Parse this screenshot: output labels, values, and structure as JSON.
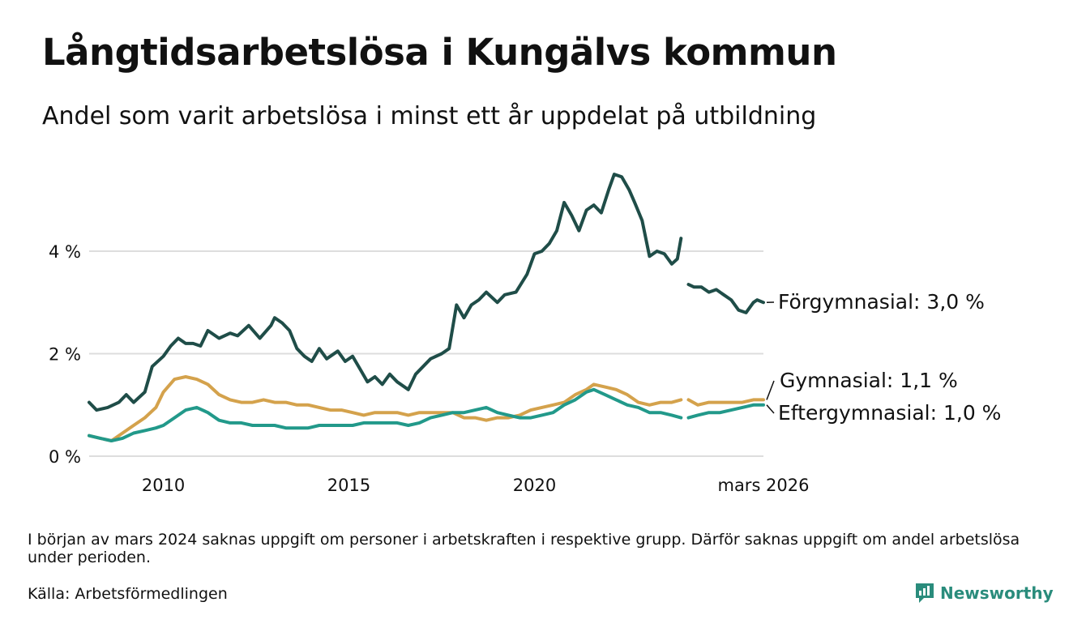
{
  "header": {
    "title": "Långtidsarbetslösa i Kungälvs kommun",
    "subtitle": "Andel som varit arbetslösa i minst ett år uppdelat på utbildning"
  },
  "footer": {
    "note": "I början av mars 2024 saknas uppgift om personer i arbetskraften i respektive grupp. Därför saknas uppgift om andel arbetslösa under perioden.",
    "source": "Källa: Arbetsförmedlingen",
    "brand": "Newsworthy"
  },
  "colors": {
    "forgymnasial": "#1f4d48",
    "gymnasial": "#d4a24c",
    "eftergymnasial": "#22998a",
    "grid": "#dddddd",
    "brand": "#2a8c7c"
  },
  "chart_data": {
    "type": "line",
    "title": "Långtidsarbetslösa i Kungälvs kommun",
    "xlabel": "",
    "ylabel": "",
    "xlim": [
      2008.0,
      2026.17
    ],
    "ylim": [
      0,
      6
    ],
    "grid": true,
    "x_ticks": [
      {
        "value": 2010,
        "label": "2010"
      },
      {
        "value": 2015,
        "label": "2015"
      },
      {
        "value": 2020,
        "label": "2020"
      },
      {
        "value": 2026.17,
        "label": "mars 2026"
      }
    ],
    "y_ticks": [
      {
        "value": 0,
        "label": "0 %"
      },
      {
        "value": 2,
        "label": "2 %"
      },
      {
        "value": 4,
        "label": "4 %"
      }
    ],
    "gap": {
      "start": 2023.95,
      "end": 2024.15
    },
    "series": [
      {
        "name": "Förgymnasial",
        "end_label": "Förgymnasial: 3,0 %",
        "last_value": 3.0,
        "points": [
          [
            2008.0,
            1.05
          ],
          [
            2008.2,
            0.9
          ],
          [
            2008.5,
            0.95
          ],
          [
            2008.8,
            1.05
          ],
          [
            2009.0,
            1.2
          ],
          [
            2009.2,
            1.05
          ],
          [
            2009.5,
            1.25
          ],
          [
            2009.7,
            1.75
          ],
          [
            2010.0,
            1.95
          ],
          [
            2010.2,
            2.15
          ],
          [
            2010.4,
            2.3
          ],
          [
            2010.6,
            2.2
          ],
          [
            2010.8,
            2.2
          ],
          [
            2011.0,
            2.15
          ],
          [
            2011.2,
            2.45
          ],
          [
            2011.5,
            2.3
          ],
          [
            2011.8,
            2.4
          ],
          [
            2012.0,
            2.35
          ],
          [
            2012.3,
            2.55
          ],
          [
            2012.6,
            2.3
          ],
          [
            2012.9,
            2.55
          ],
          [
            2013.0,
            2.7
          ],
          [
            2013.2,
            2.6
          ],
          [
            2013.4,
            2.45
          ],
          [
            2013.6,
            2.1
          ],
          [
            2013.8,
            1.95
          ],
          [
            2014.0,
            1.85
          ],
          [
            2014.2,
            2.1
          ],
          [
            2014.4,
            1.9
          ],
          [
            2014.7,
            2.05
          ],
          [
            2014.9,
            1.85
          ],
          [
            2015.1,
            1.95
          ],
          [
            2015.3,
            1.7
          ],
          [
            2015.5,
            1.45
          ],
          [
            2015.7,
            1.55
          ],
          [
            2015.9,
            1.4
          ],
          [
            2016.1,
            1.6
          ],
          [
            2016.3,
            1.45
          ],
          [
            2016.6,
            1.3
          ],
          [
            2016.8,
            1.6
          ],
          [
            2017.0,
            1.75
          ],
          [
            2017.2,
            1.9
          ],
          [
            2017.5,
            2.0
          ],
          [
            2017.7,
            2.1
          ],
          [
            2017.9,
            2.95
          ],
          [
            2018.1,
            2.7
          ],
          [
            2018.3,
            2.95
          ],
          [
            2018.5,
            3.05
          ],
          [
            2018.7,
            3.2
          ],
          [
            2019.0,
            3.0
          ],
          [
            2019.2,
            3.15
          ],
          [
            2019.5,
            3.2
          ],
          [
            2019.8,
            3.55
          ],
          [
            2020.0,
            3.95
          ],
          [
            2020.2,
            4.0
          ],
          [
            2020.4,
            4.15
          ],
          [
            2020.6,
            4.4
          ],
          [
            2020.8,
            4.95
          ],
          [
            2021.0,
            4.7
          ],
          [
            2021.2,
            4.4
          ],
          [
            2021.4,
            4.8
          ],
          [
            2021.6,
            4.9
          ],
          [
            2021.8,
            4.75
          ],
          [
            2022.0,
            5.2
          ],
          [
            2022.15,
            5.5
          ],
          [
            2022.35,
            5.45
          ],
          [
            2022.55,
            5.2
          ],
          [
            2022.7,
            4.95
          ],
          [
            2022.9,
            4.6
          ],
          [
            2023.1,
            3.9
          ],
          [
            2023.3,
            4.0
          ],
          [
            2023.5,
            3.95
          ],
          [
            2023.7,
            3.75
          ],
          [
            2023.85,
            3.85
          ],
          [
            2023.95,
            4.25
          ],
          [
            2024.15,
            3.35
          ],
          [
            2024.3,
            3.3
          ],
          [
            2024.5,
            3.3
          ],
          [
            2024.7,
            3.2
          ],
          [
            2024.9,
            3.25
          ],
          [
            2025.1,
            3.15
          ],
          [
            2025.3,
            3.05
          ],
          [
            2025.5,
            2.85
          ],
          [
            2025.7,
            2.8
          ],
          [
            2025.9,
            3.0
          ],
          [
            2026.0,
            3.05
          ],
          [
            2026.17,
            3.0
          ]
        ]
      },
      {
        "name": "Gymnasial",
        "end_label": "Gymnasial: 1,1 %",
        "last_value": 1.1,
        "points": [
          [
            2008.0,
            0.4
          ],
          [
            2008.3,
            0.35
          ],
          [
            2008.6,
            0.3
          ],
          [
            2008.9,
            0.45
          ],
          [
            2009.2,
            0.6
          ],
          [
            2009.5,
            0.75
          ],
          [
            2009.8,
            0.95
          ],
          [
            2010.0,
            1.25
          ],
          [
            2010.3,
            1.5
          ],
          [
            2010.6,
            1.55
          ],
          [
            2010.9,
            1.5
          ],
          [
            2011.2,
            1.4
          ],
          [
            2011.5,
            1.2
          ],
          [
            2011.8,
            1.1
          ],
          [
            2012.1,
            1.05
          ],
          [
            2012.4,
            1.05
          ],
          [
            2012.7,
            1.1
          ],
          [
            2013.0,
            1.05
          ],
          [
            2013.3,
            1.05
          ],
          [
            2013.6,
            1.0
          ],
          [
            2013.9,
            1.0
          ],
          [
            2014.2,
            0.95
          ],
          [
            2014.5,
            0.9
          ],
          [
            2014.8,
            0.9
          ],
          [
            2015.1,
            0.85
          ],
          [
            2015.4,
            0.8
          ],
          [
            2015.7,
            0.85
          ],
          [
            2016.0,
            0.85
          ],
          [
            2016.3,
            0.85
          ],
          [
            2016.6,
            0.8
          ],
          [
            2016.9,
            0.85
          ],
          [
            2017.2,
            0.85
          ],
          [
            2017.5,
            0.85
          ],
          [
            2017.8,
            0.85
          ],
          [
            2018.1,
            0.75
          ],
          [
            2018.4,
            0.75
          ],
          [
            2018.7,
            0.7
          ],
          [
            2019.0,
            0.75
          ],
          [
            2019.3,
            0.75
          ],
          [
            2019.6,
            0.8
          ],
          [
            2019.9,
            0.9
          ],
          [
            2020.2,
            0.95
          ],
          [
            2020.5,
            1.0
          ],
          [
            2020.8,
            1.05
          ],
          [
            2021.1,
            1.2
          ],
          [
            2021.4,
            1.3
          ],
          [
            2021.6,
            1.4
          ],
          [
            2021.9,
            1.35
          ],
          [
            2022.2,
            1.3
          ],
          [
            2022.5,
            1.2
          ],
          [
            2022.8,
            1.05
          ],
          [
            2023.1,
            1.0
          ],
          [
            2023.4,
            1.05
          ],
          [
            2023.7,
            1.05
          ],
          [
            2023.95,
            1.1
          ],
          [
            2024.15,
            1.1
          ],
          [
            2024.4,
            1.0
          ],
          [
            2024.7,
            1.05
          ],
          [
            2025.0,
            1.05
          ],
          [
            2025.3,
            1.05
          ],
          [
            2025.6,
            1.05
          ],
          [
            2025.9,
            1.1
          ],
          [
            2026.17,
            1.1
          ]
        ]
      },
      {
        "name": "Eftergymnasial",
        "end_label": "Eftergymnasial: 1,0 %",
        "last_value": 1.0,
        "points": [
          [
            2008.0,
            0.4
          ],
          [
            2008.3,
            0.35
          ],
          [
            2008.6,
            0.3
          ],
          [
            2008.9,
            0.35
          ],
          [
            2009.2,
            0.45
          ],
          [
            2009.5,
            0.5
          ],
          [
            2009.8,
            0.55
          ],
          [
            2010.0,
            0.6
          ],
          [
            2010.3,
            0.75
          ],
          [
            2010.6,
            0.9
          ],
          [
            2010.9,
            0.95
          ],
          [
            2011.2,
            0.85
          ],
          [
            2011.5,
            0.7
          ],
          [
            2011.8,
            0.65
          ],
          [
            2012.1,
            0.65
          ],
          [
            2012.4,
            0.6
          ],
          [
            2012.7,
            0.6
          ],
          [
            2013.0,
            0.6
          ],
          [
            2013.3,
            0.55
          ],
          [
            2013.6,
            0.55
          ],
          [
            2013.9,
            0.55
          ],
          [
            2014.2,
            0.6
          ],
          [
            2014.5,
            0.6
          ],
          [
            2014.8,
            0.6
          ],
          [
            2015.1,
            0.6
          ],
          [
            2015.4,
            0.65
          ],
          [
            2015.7,
            0.65
          ],
          [
            2016.0,
            0.65
          ],
          [
            2016.3,
            0.65
          ],
          [
            2016.6,
            0.6
          ],
          [
            2016.9,
            0.65
          ],
          [
            2017.2,
            0.75
          ],
          [
            2017.5,
            0.8
          ],
          [
            2017.8,
            0.85
          ],
          [
            2018.1,
            0.85
          ],
          [
            2018.4,
            0.9
          ],
          [
            2018.7,
            0.95
          ],
          [
            2019.0,
            0.85
          ],
          [
            2019.3,
            0.8
          ],
          [
            2019.6,
            0.75
          ],
          [
            2019.9,
            0.75
          ],
          [
            2020.2,
            0.8
          ],
          [
            2020.5,
            0.85
          ],
          [
            2020.8,
            1.0
          ],
          [
            2021.1,
            1.1
          ],
          [
            2021.4,
            1.25
          ],
          [
            2021.6,
            1.3
          ],
          [
            2021.9,
            1.2
          ],
          [
            2022.2,
            1.1
          ],
          [
            2022.5,
            1.0
          ],
          [
            2022.8,
            0.95
          ],
          [
            2023.1,
            0.85
          ],
          [
            2023.4,
            0.85
          ],
          [
            2023.7,
            0.8
          ],
          [
            2023.95,
            0.75
          ],
          [
            2024.15,
            0.75
          ],
          [
            2024.4,
            0.8
          ],
          [
            2024.7,
            0.85
          ],
          [
            2025.0,
            0.85
          ],
          [
            2025.3,
            0.9
          ],
          [
            2025.6,
            0.95
          ],
          [
            2025.9,
            1.0
          ],
          [
            2026.17,
            1.0
          ]
        ]
      }
    ]
  }
}
